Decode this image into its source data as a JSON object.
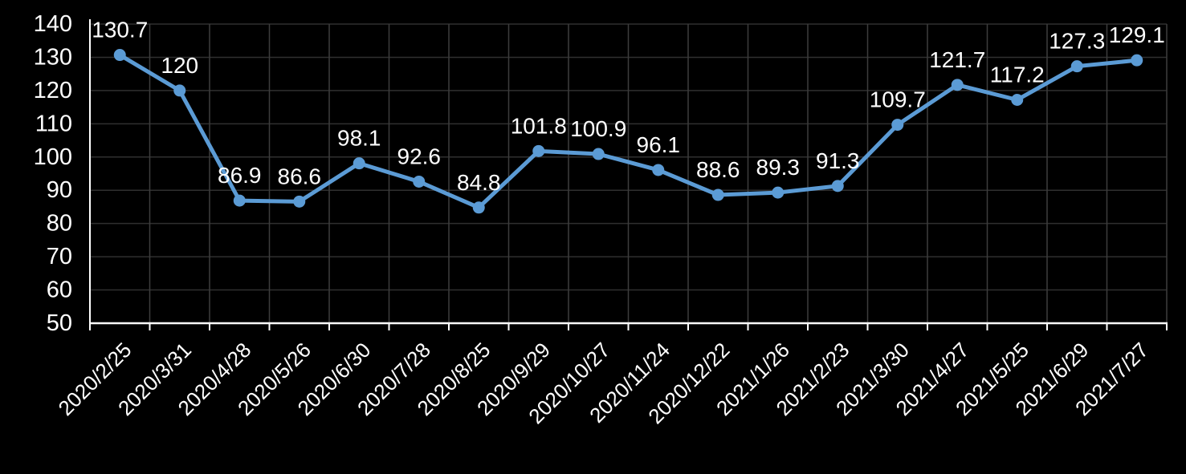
{
  "chart_data": {
    "type": "line",
    "title": "",
    "categories": [
      "2020/2/25",
      "2020/3/31",
      "2020/4/28",
      "2020/5/26",
      "2020/6/30",
      "2020/7/28",
      "2020/8/25",
      "2020/9/29",
      "2020/10/27",
      "2020/11/24",
      "2020/12/22",
      "2021/1/26",
      "2021/2/23",
      "2021/3/30",
      "2021/4/27",
      "2021/5/25",
      "2021/6/29",
      "2021/7/27"
    ],
    "series": [
      {
        "name": "value",
        "values": [
          130.7,
          120,
          86.9,
          86.6,
          98.1,
          92.6,
          84.8,
          101.8,
          100.9,
          96.1,
          88.6,
          89.3,
          91.3,
          109.7,
          121.7,
          117.2,
          127.3,
          129.1
        ]
      }
    ],
    "data_labels": [
      "130.7",
      "120",
      "86.9",
      "86.6",
      "98.1",
      "92.6",
      "84.8",
      "101.8",
      "100.9",
      "96.1",
      "88.6",
      "89.3",
      "91.3",
      "109.7",
      "121.7",
      "117.2",
      "127.3",
      "129.1"
    ],
    "xlabel": "",
    "ylabel": "",
    "ylim": [
      50,
      140
    ],
    "yticks": [
      50,
      60,
      70,
      80,
      90,
      100,
      110,
      120,
      130,
      140
    ],
    "grid": true,
    "legend": "none",
    "colors": {
      "line": "#5B9BD5",
      "marker": "#5B9BD5",
      "background": "#000000",
      "text": "#FFFFFF",
      "axis": "#FFFFFF",
      "gridline_horizontal": "#2f2f2f",
      "gridline_vertical": "#3d3d3d"
    }
  }
}
